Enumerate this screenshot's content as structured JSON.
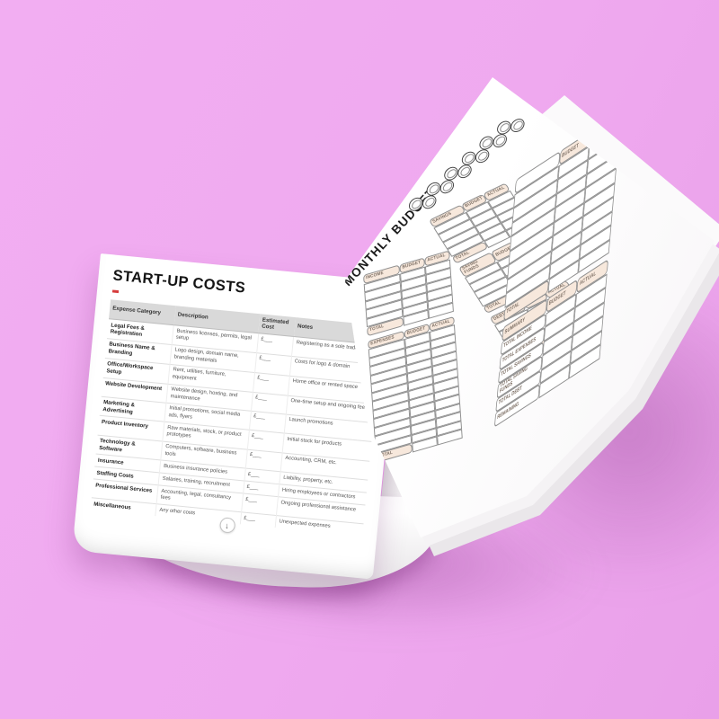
{
  "scene": {
    "background_color": "#efa9ef",
    "description": "Open planner mockup on pink background"
  },
  "left_page": {
    "title": "START-UP COSTS",
    "accent_color": "#d63b3b",
    "scroll_icon": "↓",
    "table": {
      "headers": [
        "Expense Category",
        "Description",
        "Estimated Cost",
        "Notes"
      ],
      "rows": [
        [
          "Legal Fees & Registration",
          "Business licenses, permits, legal setup",
          "£___",
          "Registering as a sole trader/LLC"
        ],
        [
          "Business Name & Branding",
          "Logo design, domain name, branding materials",
          "£___",
          "Costs for logo & domain"
        ],
        [
          "Office/Workspace Setup",
          "Rent, utilities, furniture, equipment",
          "£___",
          "Home office or rented space"
        ],
        [
          "Website Development",
          "Website design, hosting, and maintenance",
          "£___",
          "One-time setup and ongoing fees"
        ],
        [
          "Marketing & Advertising",
          "Initial promotions, social media ads, flyers",
          "£___",
          "Launch promotions"
        ],
        [
          "Product Inventory",
          "Raw materials, stock, or product prototypes",
          "£___",
          "Initial stock for products"
        ],
        [
          "Technology & Software",
          "Computers, software, business tools",
          "£___",
          "Accounting, CRM, etc."
        ],
        [
          "Insurance",
          "Business insurance policies",
          "£___",
          "Liability, property, etc."
        ],
        [
          "Staffing Costs",
          "Salaries, training, recruitment",
          "£___",
          "Hiring employees or contractors"
        ],
        [
          "Professional Services",
          "Accounting, legal, consultancy fees",
          "£___",
          "Ongoing professional assistance"
        ],
        [
          "Miscellaneous",
          "Any other costs",
          "£___",
          "Unexpected expenses"
        ]
      ]
    }
  },
  "right_page": {
    "title": "MONTHLY BUDGET",
    "decoration": {
      "name": "chain-rings",
      "count": 12
    },
    "chip_color": "#f7e8dc",
    "column_groups": [
      [
        "income",
        "expenses"
      ],
      [
        "savings",
        "saving_funds",
        "debt"
      ],
      [
        "tracker",
        "summary"
      ]
    ],
    "tables": {
      "income": {
        "label": "INCOME",
        "columns": [
          "BUDGET",
          "ACTUAL"
        ],
        "blank_rows": 5,
        "total_label": "TOTAL"
      },
      "expenses": {
        "label": "EXPENSES",
        "columns": [
          "BUDGET",
          "ACTUAL"
        ],
        "blank_rows": 12,
        "total_label": "TOTAL"
      },
      "savings": {
        "label": "SAVINGS",
        "columns": [
          "BUDGET",
          "ACTUAL"
        ],
        "blank_rows": 4,
        "total_label": "TOTAL"
      },
      "saving_funds": {
        "label": "SAVING FUNDS",
        "columns": [
          "BUDGET",
          "ACTUAL"
        ],
        "blank_rows": 4,
        "total_label": "TOTAL"
      },
      "debt": {
        "label": "DEBT",
        "columns": [
          "BUDGET",
          "ACTUAL"
        ],
        "blank_rows": 4,
        "total_label": "TOTAL"
      },
      "tracker": {
        "label": "",
        "columns": [
          "BUDGET",
          "ACTUAL"
        ],
        "blank_rows": 8,
        "total_label": "TOTAL"
      },
      "summary": {
        "label": "SUMMARY",
        "columns": [
          "BUDGET",
          "ACTUAL"
        ],
        "row_labels": [
          "TOTAL INCOME",
          "TOTAL EXPENSES",
          "TOTAL SAVINGS",
          "TOTAL SAVING FUNDS",
          "TOTAL DEBT",
          "REMAINING"
        ]
      }
    }
  }
}
